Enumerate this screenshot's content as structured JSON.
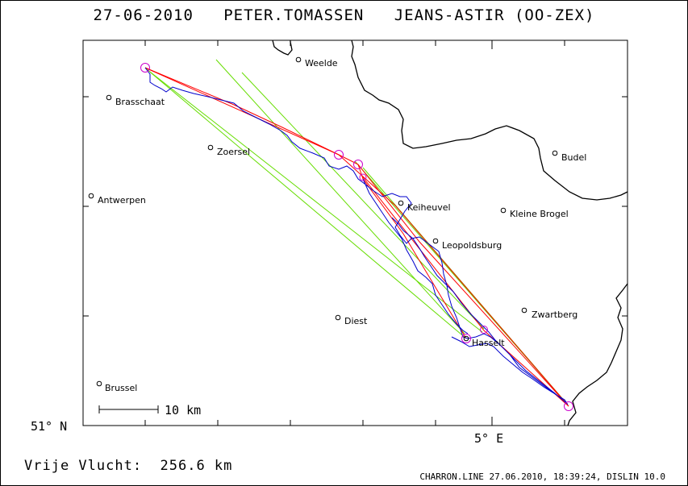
{
  "header": {
    "date": "27-06-2010",
    "pilot": "PETER.TOMASSEN",
    "glider": "JEANS-ASTIR (OO-ZEX)"
  },
  "map": {
    "lat_label": "51° N",
    "lon_label": "5° E",
    "scale_label": "10 km",
    "places": [
      {
        "name": "Weelde"
      },
      {
        "name": "Brasschaat"
      },
      {
        "name": "Zoersel"
      },
      {
        "name": "Budel"
      },
      {
        "name": "Antwerpen"
      },
      {
        "name": "Keiheuvel"
      },
      {
        "name": "Kleine Brogel"
      },
      {
        "name": "Leopoldsburg"
      },
      {
        "name": "Zwartberg"
      },
      {
        "name": "Diest"
      },
      {
        "name": "Hasselt"
      },
      {
        "name": "Brussel"
      }
    ],
    "colors": {
      "track": "#0000cc",
      "task_legs": "#ff0000",
      "sector_lines": "#66dd00",
      "turnpoints": "#cc00cc",
      "border": "#000000"
    }
  },
  "footer": {
    "distance": "Vrije Vlucht:  256.6 km",
    "credit": "CHARRON.LINE 27.06.2010, 18:39:24, DISLIN 10.0"
  }
}
